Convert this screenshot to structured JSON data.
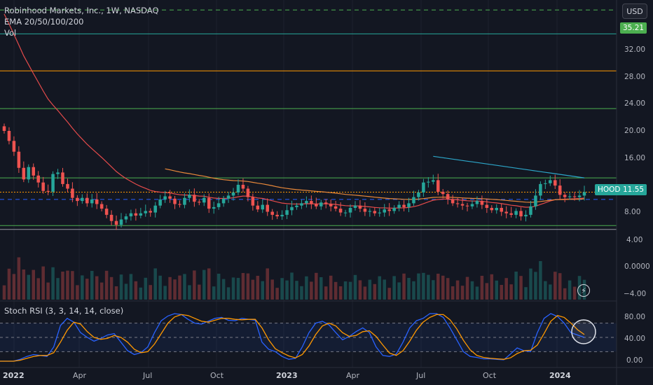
{
  "header": {
    "title": "Robinhood Markets, Inc., 1W, NASDAQ",
    "ema_label": "EMA 20/50/100/200",
    "vol_label": "Vol"
  },
  "currency": "USD",
  "price_axis": {
    "ticks": [
      "32.00",
      "28.00",
      "24.00",
      "20.00",
      "16.00",
      "8.00"
    ],
    "resistance_tag": "35.21",
    "symbol_tag": "HOOD",
    "last_price_tag": "11.55"
  },
  "volume_axis": {
    "ticks": [
      "4.00",
      "0.0000",
      "−4.00"
    ]
  },
  "stoch_rsi": {
    "label": "Stoch RSI (3, 3, 14, 14, close)",
    "ticks": [
      "80.00",
      "40.00",
      "0.00"
    ]
  },
  "time_axis": {
    "labels": [
      {
        "text": "2022",
        "bold": true
      },
      {
        "text": "Apr",
        "bold": false
      },
      {
        "text": "Jul",
        "bold": false
      },
      {
        "text": "Oct",
        "bold": false
      },
      {
        "text": "2023",
        "bold": true
      },
      {
        "text": "Apr",
        "bold": false
      },
      {
        "text": "Jul",
        "bold": false
      },
      {
        "text": "Oct",
        "bold": false
      },
      {
        "text": "2024",
        "bold": true
      }
    ]
  },
  "colors": {
    "background": "#131722",
    "up": "#26a69a",
    "down": "#ef5350",
    "ema_fast": "#e54b4b",
    "ema_mid": "#e8883a",
    "ema_slow": "#2ca6c9",
    "support_green": "#4caf50",
    "resistance_orange": "#ff9800",
    "stoch_k": "#2962ff",
    "stoch_d": "#ff9800"
  },
  "chart_data": {
    "type": "candlestick",
    "symbol": "HOOD",
    "interval": "1W",
    "ylim": [
      6.5,
      36.5
    ],
    "horizontal_levels": [
      {
        "price": 35.21,
        "style": "dashed",
        "color": "#4caf50"
      },
      {
        "price": 32.1,
        "style": "solid",
        "color": "#26a69a"
      },
      {
        "price": 27.3,
        "style": "solid",
        "color": "#ff9800"
      },
      {
        "price": 22.4,
        "style": "solid",
        "color": "#4caf50"
      },
      {
        "price": 13.4,
        "style": "solid",
        "color": "#4caf50"
      },
      {
        "price": 11.55,
        "style": "dotted",
        "color": "#ff9800"
      },
      {
        "price": 10.6,
        "style": "dashed",
        "color": "#2962ff"
      },
      {
        "price": 7.2,
        "style": "solid",
        "color": "#4caf50"
      },
      {
        "price": 6.7,
        "style": "solid",
        "color": "#9598a1"
      }
    ],
    "closes": [
      19.5,
      18.2,
      16.8,
      14.7,
      13.2,
      14.8,
      13.7,
      12.8,
      11.7,
      11.6,
      13.9,
      14.1,
      12.6,
      12.0,
      10.8,
      10.4,
      10.8,
      10.1,
      10.6,
      10.0,
      9.4,
      8.6,
      7.8,
      7.3,
      8.0,
      8.4,
      8.8,
      8.5,
      8.8,
      9.1,
      8.9,
      9.8,
      10.6,
      11.0,
      10.7,
      10.0,
      9.9,
      10.8,
      11.2,
      10.3,
      10.2,
      10.8,
      9.4,
      9.6,
      10.1,
      10.7,
      11.1,
      11.5,
      12.5,
      12.0,
      10.9,
      9.8,
      9.3,
      9.9,
      9.0,
      8.6,
      8.4,
      8.6,
      9.2,
      9.6,
      9.8,
      10.1,
      10.4,
      10.0,
      9.7,
      10.2,
      10.0,
      9.7,
      9.4,
      8.9,
      8.9,
      9.5,
      9.8,
      9.4,
      9.0,
      9.1,
      8.8,
      8.9,
      9.3,
      9.1,
      9.5,
      9.9,
      9.6,
      10.1,
      10.9,
      11.5,
      12.8,
      12.9,
      13.1,
      11.6,
      11.3,
      10.6,
      10.1,
      10.0,
      9.8,
      9.7,
      10.0,
      10.4,
      9.9,
      9.5,
      9.2,
      9.5,
      9.0,
      8.8,
      8.6,
      9.1,
      8.4,
      8.6,
      9.7,
      11.1,
      12.6,
      12.7,
      13.1,
      12.4,
      11.2,
      10.9,
      11.0,
      10.9,
      11.1,
      11.55
    ],
    "ema_fast_range": {
      "from": 36,
      "to": 11.3
    },
    "ema_mid_start_week": 33,
    "ema_slow_start_week": 88,
    "stoch_ylim": [
      0,
      100
    ],
    "stoch_levels": [
      80,
      50,
      20
    ],
    "stoch_rsi_k": [
      0,
      0,
      0,
      4,
      10,
      14,
      12,
      10,
      30,
      75,
      90,
      82,
      60,
      50,
      42,
      48,
      55,
      58,
      40,
      22,
      14,
      18,
      30,
      60,
      85,
      95,
      100,
      98,
      88,
      80,
      78,
      84,
      90,
      92,
      86,
      85,
      90,
      88,
      86,
      40,
      25,
      20,
      10,
      4,
      6,
      30,
      60,
      80,
      84,
      76,
      60,
      45,
      52,
      62,
      70,
      60,
      30,
      12,
      10,
      15,
      40,
      70,
      85,
      90,
      100,
      100,
      92,
      70,
      45,
      20,
      10,
      8,
      5,
      5,
      4,
      3,
      15,
      28,
      22,
      20,
      60,
      90,
      100,
      94,
      80,
      60,
      55,
      50
    ],
    "stoch_rsi_d": [
      0,
      0,
      0,
      2,
      6,
      10,
      12,
      12,
      18,
      40,
      65,
      82,
      78,
      62,
      50,
      46,
      48,
      54,
      50,
      40,
      25,
      18,
      20,
      36,
      58,
      80,
      93,
      98,
      96,
      90,
      84,
      82,
      86,
      90,
      90,
      88,
      87,
      88,
      88,
      70,
      45,
      26,
      18,
      11,
      7,
      14,
      32,
      56,
      74,
      80,
      74,
      60,
      52,
      54,
      62,
      64,
      52,
      34,
      17,
      12,
      22,
      42,
      65,
      82,
      92,
      98,
      98,
      87,
      68,
      44,
      24,
      12,
      8,
      6,
      5,
      4,
      7,
      16,
      22,
      23,
      34,
      58,
      84,
      96,
      92,
      80,
      66,
      56
    ]
  }
}
